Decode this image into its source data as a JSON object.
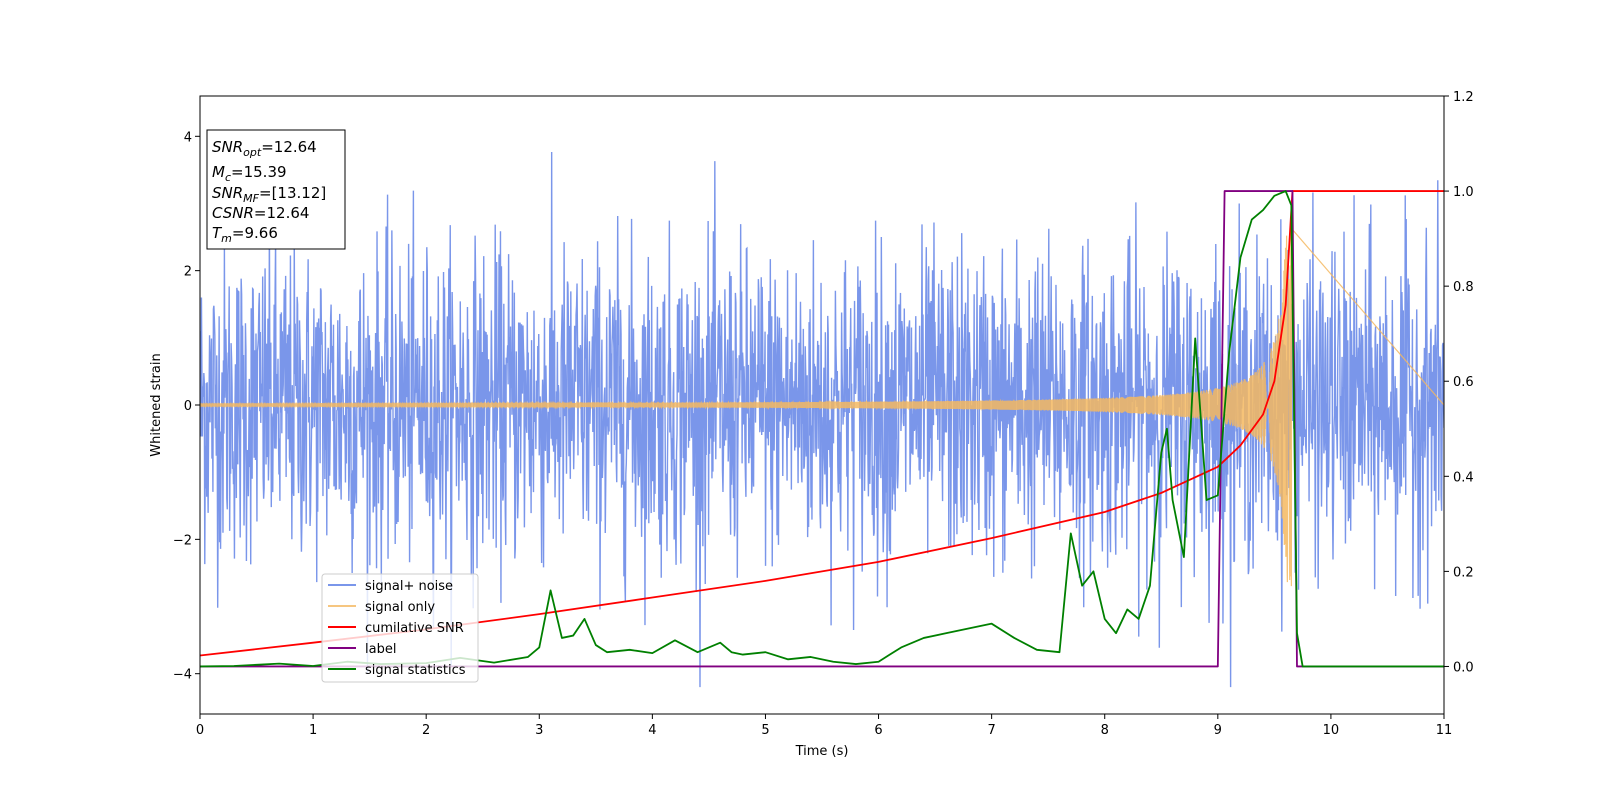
{
  "chart_data": {
    "type": "line",
    "title": "",
    "xlabel": "Time (s)",
    "ylabel": "Whitened strain",
    "xlim": [
      0,
      11
    ],
    "ylim": [
      -4.6,
      4.6
    ],
    "y2lim": [
      -0.1,
      1.2
    ],
    "x_ticks": [
      0,
      1,
      2,
      3,
      4,
      5,
      6,
      7,
      8,
      9,
      10,
      11
    ],
    "y_ticks": [
      -4,
      -2,
      0,
      2,
      4
    ],
    "y_tick_labels": [
      "−4",
      "−2",
      "0",
      "2",
      "4"
    ],
    "y2_ticks": [
      0.0,
      0.2,
      0.4,
      0.6,
      0.8,
      1.0,
      1.2
    ],
    "y2_tick_labels": [
      "0.0",
      "0.2",
      "0.4",
      "0.6",
      "0.8",
      "1.0",
      "1.2"
    ],
    "grid": false,
    "legend_position": "lower-left",
    "info_box": {
      "snr_opt": "=12.64",
      "mc": "=15.39",
      "snr_mf": "=[13.12]",
      "csnr": "=12.64",
      "tm": "=9.66",
      "snr_opt_label": "SNR",
      "snr_opt_sub": "opt",
      "mc_label": "M",
      "mc_sub": "c",
      "snr_mf_label": "SNR",
      "snr_mf_sub": "MF",
      "csnr_label": "CSNR",
      "tm_label": "T",
      "tm_sub": "m"
    },
    "series": [
      {
        "name": "signal+ noise",
        "axis": "left",
        "color": "#4169e1",
        "description_values": {
          "noise_std": 1.0,
          "noise_max_abs": 4.2
        }
      },
      {
        "name": "signal only",
        "axis": "left",
        "color": "#f4b860",
        "chirp": {
          "merger_time": 9.66,
          "start_amplitude": 0.02,
          "peak_amplitude": 2.7
        }
      },
      {
        "name": "cumilative SNR",
        "axis": "right",
        "color": "#ff0000",
        "x": [
          0,
          1,
          2,
          3,
          4,
          5,
          6,
          7,
          8,
          8.5,
          9,
          9.2,
          9.4,
          9.5,
          9.6,
          9.66,
          11
        ],
        "values": [
          0.023,
          0.05,
          0.078,
          0.11,
          0.145,
          0.18,
          0.22,
          0.27,
          0.325,
          0.365,
          0.42,
          0.465,
          0.53,
          0.6,
          0.76,
          1.0,
          1.0
        ]
      },
      {
        "name": "label",
        "axis": "right",
        "color": "#800080",
        "x": [
          0,
          9.0,
          9.06,
          9.66,
          9.7,
          11
        ],
        "values": [
          0,
          0,
          1,
          1,
          0,
          0
        ]
      },
      {
        "name": "signal statistics",
        "axis": "right",
        "color": "#008000",
        "x": [
          0,
          0.3,
          0.7,
          1.0,
          1.3,
          1.6,
          2.0,
          2.3,
          2.6,
          2.9,
          3.0,
          3.1,
          3.2,
          3.3,
          3.4,
          3.5,
          3.6,
          3.8,
          4.0,
          4.2,
          4.4,
          4.6,
          4.7,
          4.8,
          5.0,
          5.2,
          5.4,
          5.6,
          5.8,
          6.0,
          6.2,
          6.4,
          6.6,
          6.8,
          7.0,
          7.2,
          7.4,
          7.6,
          7.7,
          7.8,
          7.9,
          8.0,
          8.1,
          8.2,
          8.3,
          8.4,
          8.5,
          8.55,
          8.6,
          8.7,
          8.8,
          8.9,
          9.0,
          9.1,
          9.2,
          9.3,
          9.4,
          9.5,
          9.6,
          9.65,
          9.7,
          9.75,
          10.0,
          11.0
        ],
        "values": [
          0.0,
          0.001,
          0.006,
          0.001,
          0.01,
          0.005,
          0.007,
          0.018,
          0.008,
          0.02,
          0.04,
          0.16,
          0.06,
          0.065,
          0.1,
          0.045,
          0.03,
          0.035,
          0.028,
          0.055,
          0.03,
          0.05,
          0.03,
          0.025,
          0.03,
          0.015,
          0.02,
          0.01,
          0.005,
          0.01,
          0.04,
          0.06,
          0.07,
          0.08,
          0.09,
          0.06,
          0.035,
          0.03,
          0.28,
          0.17,
          0.2,
          0.1,
          0.07,
          0.12,
          0.1,
          0.17,
          0.45,
          0.5,
          0.35,
          0.23,
          0.69,
          0.35,
          0.36,
          0.66,
          0.86,
          0.94,
          0.96,
          0.99,
          1.0,
          0.97,
          0.07,
          0.0,
          0.0,
          0.0
        ]
      }
    ]
  }
}
